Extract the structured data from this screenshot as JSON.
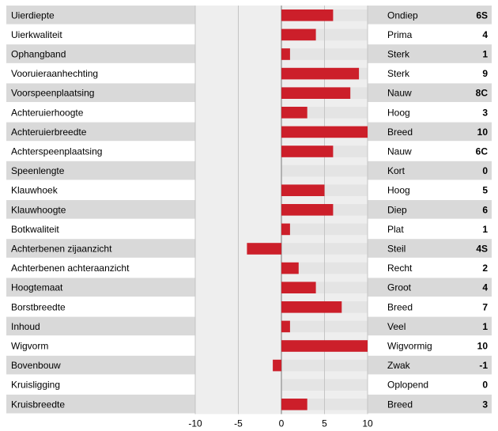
{
  "chart_data": {
    "type": "bar",
    "orientation": "horizontal",
    "xlim": [
      -10,
      10
    ],
    "xticks": [
      -10,
      -5,
      0,
      5,
      10
    ],
    "grid": true,
    "bar_color": "#cc1f2a",
    "row_colors": [
      "#d9d9d9",
      "#ffffff"
    ],
    "plot_background": "#eeeeee",
    "rows": [
      {
        "label": "Uierdiepte",
        "descriptor": "Ondiep",
        "score": "6S",
        "value": 6
      },
      {
        "label": "Uierkwaliteit",
        "descriptor": "Prima",
        "score": "4",
        "value": 4
      },
      {
        "label": "Ophangband",
        "descriptor": "Sterk",
        "score": "1",
        "value": 1
      },
      {
        "label": "Vooruieraanhechting",
        "descriptor": "Sterk",
        "score": "9",
        "value": 9
      },
      {
        "label": "Voorspeenplaatsing",
        "descriptor": "Nauw",
        "score": "8C",
        "value": 8
      },
      {
        "label": "Achteruierhoogte",
        "descriptor": "Hoog",
        "score": "3",
        "value": 3
      },
      {
        "label": "Achteruierbreedte",
        "descriptor": "Breed",
        "score": "10",
        "value": 10
      },
      {
        "label": "Achterspeenplaatsing",
        "descriptor": "Nauw",
        "score": "6C",
        "value": 6
      },
      {
        "label": "Speenlengte",
        "descriptor": "Kort",
        "score": "0",
        "value": 0
      },
      {
        "label": "Klauwhoek",
        "descriptor": "Hoog",
        "score": "5",
        "value": 5
      },
      {
        "label": "Klauwhoogte",
        "descriptor": "Diep",
        "score": "6",
        "value": 6
      },
      {
        "label": "Botkwaliteit",
        "descriptor": "Plat",
        "score": "1",
        "value": 1
      },
      {
        "label": "Achterbenen zijaanzicht",
        "descriptor": "Steil",
        "score": "4S",
        "value": -4
      },
      {
        "label": "Achterbenen achteraanzicht",
        "descriptor": "Recht",
        "score": "2",
        "value": 2
      },
      {
        "label": "Hoogtemaat",
        "descriptor": "Groot",
        "score": "4",
        "value": 4
      },
      {
        "label": "Borstbreedte",
        "descriptor": "Breed",
        "score": "7",
        "value": 7
      },
      {
        "label": "Inhoud",
        "descriptor": "Veel",
        "score": "1",
        "value": 1
      },
      {
        "label": "Wigvorm",
        "descriptor": "Wigvormig",
        "score": "10",
        "value": 10
      },
      {
        "label": "Bovenbouw",
        "descriptor": "Zwak",
        "score": "-1",
        "value": -1
      },
      {
        "label": "Kruisligging",
        "descriptor": "Oplopend",
        "score": "0",
        "value": 0
      },
      {
        "label": "Kruisbreedte",
        "descriptor": "Breed",
        "score": "3",
        "value": 3
      }
    ]
  }
}
